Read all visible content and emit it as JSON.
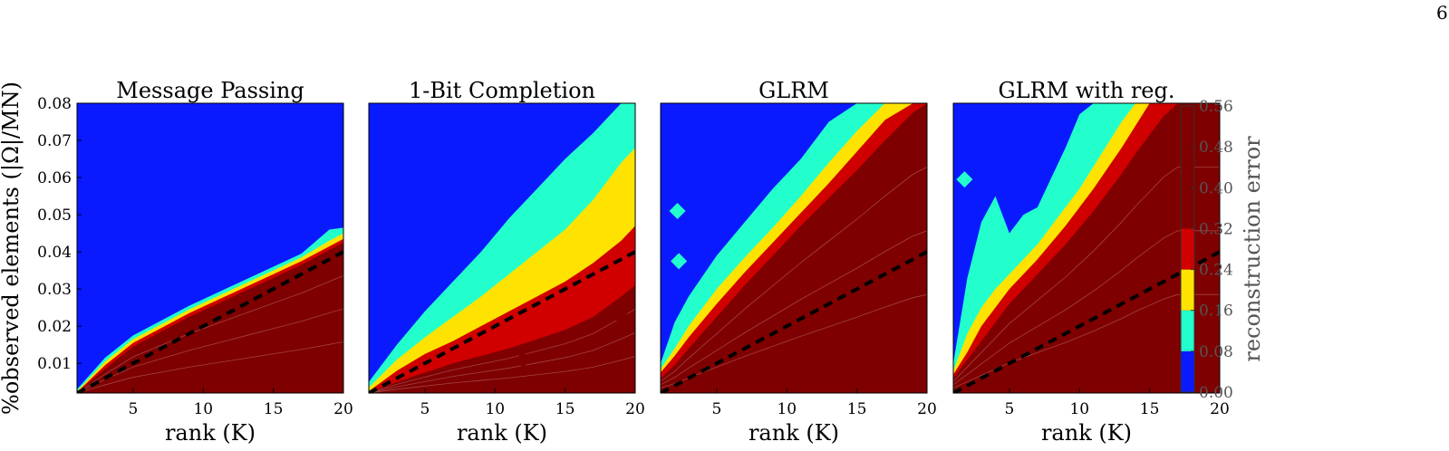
{
  "page_number": "6",
  "chart_data": {
    "type": "heatmap",
    "panels": [
      {
        "title": "Message Passing",
        "boundaries": {
          "x": [
            1,
            3,
            5,
            7,
            9,
            11,
            13,
            15,
            17,
            19,
            20
          ],
          "c008": [
            0.003,
            0.0115,
            0.0175,
            0.0215,
            0.0255,
            0.029,
            0.0325,
            0.036,
            0.0395,
            0.046,
            0.0465
          ],
          "c016": [
            0.0025,
            0.0105,
            0.0165,
            0.0205,
            0.0245,
            0.028,
            0.0315,
            0.035,
            0.0385,
            0.043,
            0.045
          ],
          "c024": [
            0.0022,
            0.0095,
            0.0155,
            0.0195,
            0.0235,
            0.027,
            0.0305,
            0.034,
            0.0375,
            0.0415,
            0.0435
          ],
          "c032": [
            0.002,
            0.0085,
            0.0145,
            0.0185,
            0.0225,
            0.026,
            0.0295,
            0.033,
            0.0365,
            0.0405,
            0.0425
          ]
        },
        "islands": []
      },
      {
        "title": "1-Bit Completion",
        "boundaries": {
          "x": [
            1,
            3,
            5,
            7,
            9,
            11,
            13,
            15,
            17,
            19,
            20
          ],
          "c008": [
            0.005,
            0.015,
            0.024,
            0.032,
            0.04,
            0.049,
            0.057,
            0.065,
            0.072,
            0.08,
            0.082
          ],
          "c016": [
            0.0035,
            0.011,
            0.017,
            0.0225,
            0.028,
            0.034,
            0.04,
            0.046,
            0.054,
            0.064,
            0.068
          ],
          "c024": [
            0.0025,
            0.008,
            0.0125,
            0.016,
            0.02,
            0.024,
            0.028,
            0.032,
            0.037,
            0.043,
            0.047
          ],
          "c032": [
            0.002,
            0.005,
            0.0075,
            0.01,
            0.012,
            0.014,
            0.0165,
            0.019,
            0.0225,
            0.028,
            0.031
          ]
        },
        "islands": [
          {
            "x": 12,
            "y": 0.011,
            "level": "c032"
          },
          {
            "x": 19,
            "y": 0.0225,
            "level": "c032"
          }
        ]
      },
      {
        "title": "GLRM",
        "boundaries": {
          "x": [
            1,
            2,
            3,
            5,
            7,
            9,
            11,
            13,
            15,
            17,
            19,
            20
          ],
          "c008": [
            0.01,
            0.021,
            0.028,
            0.039,
            0.048,
            0.057,
            0.065,
            0.075,
            0.08,
            0.08,
            0.08,
            0.08
          ],
          "c016": [
            0.0085,
            0.014,
            0.02,
            0.03,
            0.0385,
            0.0465,
            0.055,
            0.064,
            0.0725,
            0.08,
            0.08,
            0.08
          ],
          "c024": [
            0.0075,
            0.012,
            0.017,
            0.026,
            0.0345,
            0.0425,
            0.0505,
            0.0585,
            0.067,
            0.0755,
            0.08,
            0.08
          ],
          "c032": [
            0.006,
            0.0095,
            0.014,
            0.0225,
            0.031,
            0.039,
            0.047,
            0.0545,
            0.062,
            0.07,
            0.0775,
            0.08
          ]
        },
        "islands": [
          {
            "x": 2.2,
            "y": 0.051,
            "level": "c008"
          },
          {
            "x": 2.3,
            "y": 0.0375,
            "level": "c008"
          }
        ]
      },
      {
        "title": "GLRM with reg.",
        "boundaries": {
          "x": [
            1,
            2,
            3,
            4,
            5,
            6,
            7,
            8,
            9,
            10,
            11,
            12,
            13,
            14,
            15,
            16,
            17,
            18,
            19,
            20
          ],
          "c008": [
            0.01,
            0.033,
            0.048,
            0.055,
            0.045,
            0.05,
            0.052,
            0.06,
            0.068,
            0.077,
            0.08,
            0.08,
            0.08,
            0.08,
            0.08,
            0.08,
            0.08,
            0.08,
            0.08,
            0.08
          ],
          "c016": [
            0.008,
            0.018,
            0.025,
            0.03,
            0.034,
            0.038,
            0.042,
            0.047,
            0.052,
            0.057,
            0.063,
            0.069,
            0.075,
            0.08,
            0.08,
            0.08,
            0.08,
            0.08,
            0.08,
            0.08
          ],
          "c024": [
            0.007,
            0.013,
            0.02,
            0.025,
            0.03,
            0.034,
            0.038,
            0.0425,
            0.047,
            0.052,
            0.057,
            0.0625,
            0.068,
            0.074,
            0.08,
            0.08,
            0.08,
            0.08,
            0.08,
            0.08
          ],
          "c032": [
            0.006,
            0.011,
            0.016,
            0.021,
            0.026,
            0.03,
            0.034,
            0.038,
            0.042,
            0.0465,
            0.051,
            0.056,
            0.061,
            0.0665,
            0.0715,
            0.0765,
            0.08,
            0.08,
            0.08,
            0.08
          ]
        },
        "islands": [
          {
            "x": 1.8,
            "y": 0.0595,
            "level": "c008"
          }
        ]
      }
    ],
    "threshold_line": {
      "style": "dashed",
      "color": "#000000",
      "x": [
        1,
        20
      ],
      "y": [
        0.002,
        0.04
      ]
    },
    "xlabel": "rank (K)",
    "ylabel": "%observed elements (|Ω|/MN)",
    "xlim": [
      1,
      20
    ],
    "ylim": [
      0.002,
      0.08
    ],
    "xticks": [
      "5",
      "10",
      "15",
      "20"
    ],
    "xtick_values": [
      5,
      10,
      15,
      20
    ],
    "yticks": [
      "0.01",
      "0.02",
      "0.03",
      "0.04",
      "0.05",
      "0.06",
      "0.07",
      "0.08"
    ],
    "ytick_values": [
      0.01,
      0.02,
      0.03,
      0.04,
      0.05,
      0.06,
      0.07,
      0.08
    ],
    "colorbar": {
      "label": "reconstruction error",
      "ticks": [
        "0.00",
        "0.08",
        "0.16",
        "0.24",
        "0.32",
        "0.40",
        "0.48",
        "0.56"
      ],
      "levels": [
        0.0,
        0.08,
        0.16,
        0.24,
        0.32,
        0.4,
        0.48,
        0.56
      ],
      "colors": [
        "#0a1aff",
        "#22ffcc",
        "#ffe300",
        "#d00000",
        "#7f0000",
        "#7f0000",
        "#7f0000"
      ]
    },
    "colors": {
      "c000": "#0a1aff",
      "c008": "#22ffcc",
      "c016": "#ffe300",
      "c024": "#d00000",
      "c032": "#7f0000"
    }
  }
}
